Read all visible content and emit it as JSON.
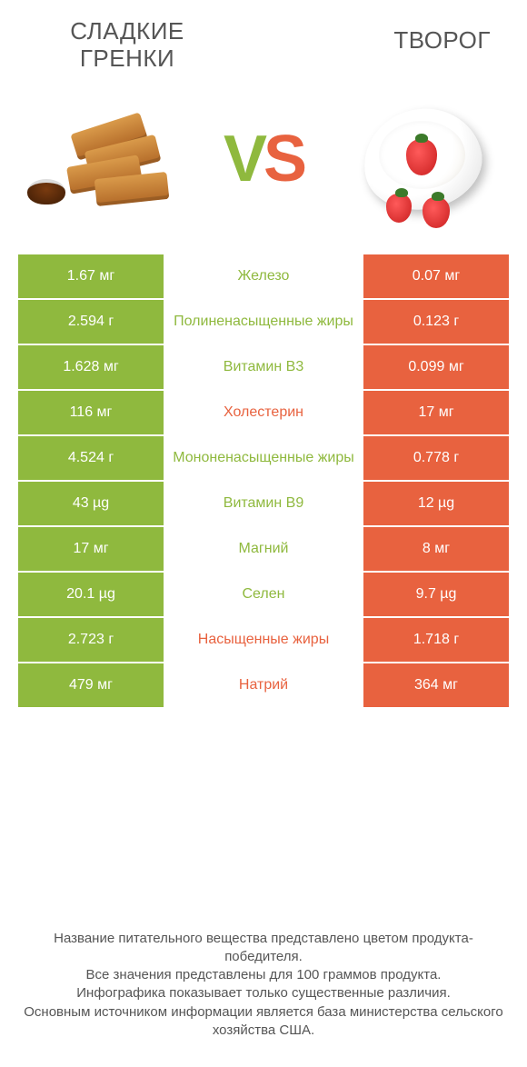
{
  "colors": {
    "green": "#8fb93e",
    "orange": "#e8623f",
    "text_gray": "#555555",
    "background": "#ffffff"
  },
  "products": {
    "left": {
      "title": "СЛАДКИЕ ГРЕНКИ"
    },
    "right": {
      "title": "ТВОРОГ"
    }
  },
  "vs": {
    "v": "V",
    "s": "S"
  },
  "table": {
    "type": "comparison-table",
    "rows": [
      {
        "left": "1.67 мг",
        "label": "Железо",
        "right": "0.07 мг",
        "winner": "left"
      },
      {
        "left": "2.594 г",
        "label": "Полиненасыщенные жиры",
        "right": "0.123 г",
        "winner": "left"
      },
      {
        "left": "1.628 мг",
        "label": "Витамин B3",
        "right": "0.099 мг",
        "winner": "left"
      },
      {
        "left": "116 мг",
        "label": "Холестерин",
        "right": "17 мг",
        "winner": "right"
      },
      {
        "left": "4.524 г",
        "label": "Мононенасыщенные жиры",
        "right": "0.778 г",
        "winner": "left"
      },
      {
        "left": "43 µg",
        "label": "Витамин B9",
        "right": "12 µg",
        "winner": "left"
      },
      {
        "left": "17 мг",
        "label": "Магний",
        "right": "8 мг",
        "winner": "left"
      },
      {
        "left": "20.1 µg",
        "label": "Селен",
        "right": "9.7 µg",
        "winner": "left"
      },
      {
        "left": "2.723 г",
        "label": "Насыщенные жиры",
        "right": "1.718 г",
        "winner": "right"
      },
      {
        "left": "479 мг",
        "label": "Натрий",
        "right": "364 мг",
        "winner": "right"
      }
    ]
  },
  "footer": {
    "line1": "Название питательного вещества представлено цветом продукта-победителя.",
    "line2": "Все значения представлены для 100 граммов продукта.",
    "line3": "Инфографика показывает только существенные различия.",
    "line4": "Основным источником информации является база министерства сельского хозяйства США."
  }
}
